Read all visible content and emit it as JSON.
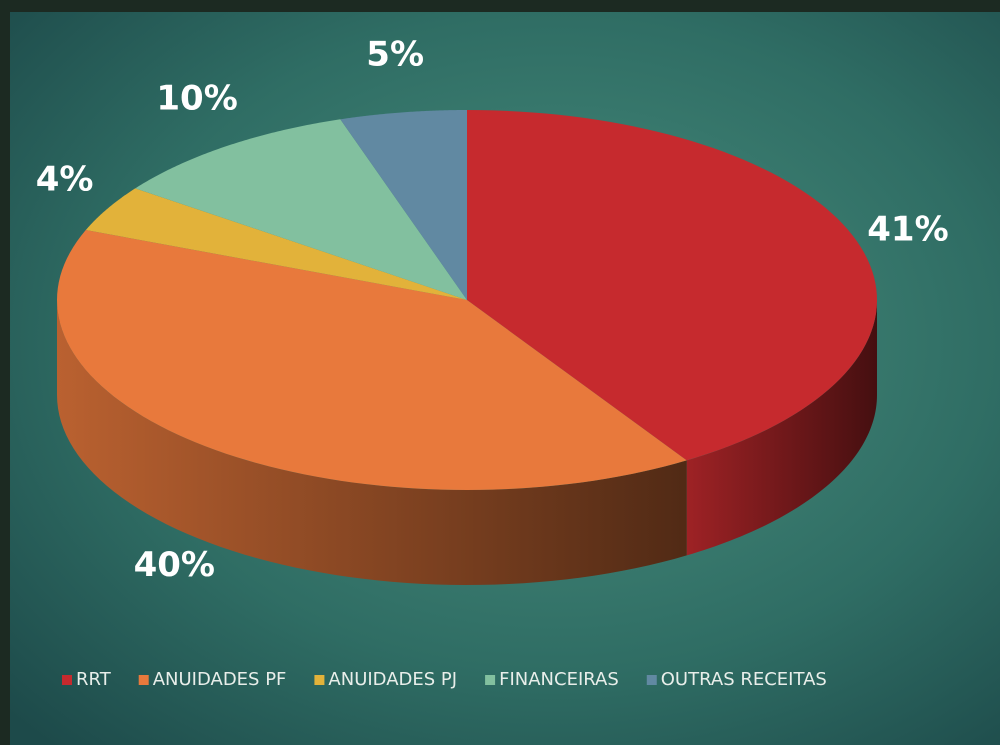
{
  "chart_data": {
    "type": "pie",
    "categories": [
      "RRT",
      "ANUIDADES PF",
      "ANUIDADES PJ",
      "FINANCEIRAS",
      "OUTRAS RECEITAS"
    ],
    "values": [
      41,
      40,
      4,
      10,
      5
    ],
    "value_labels": [
      "41%",
      "40%",
      "4%",
      "10%",
      "5%"
    ],
    "colors": [
      "#c62a2e",
      "#e8793c",
      "#e2b23a",
      "#82c09f",
      "#6189a2"
    ],
    "legend": "bottom"
  }
}
